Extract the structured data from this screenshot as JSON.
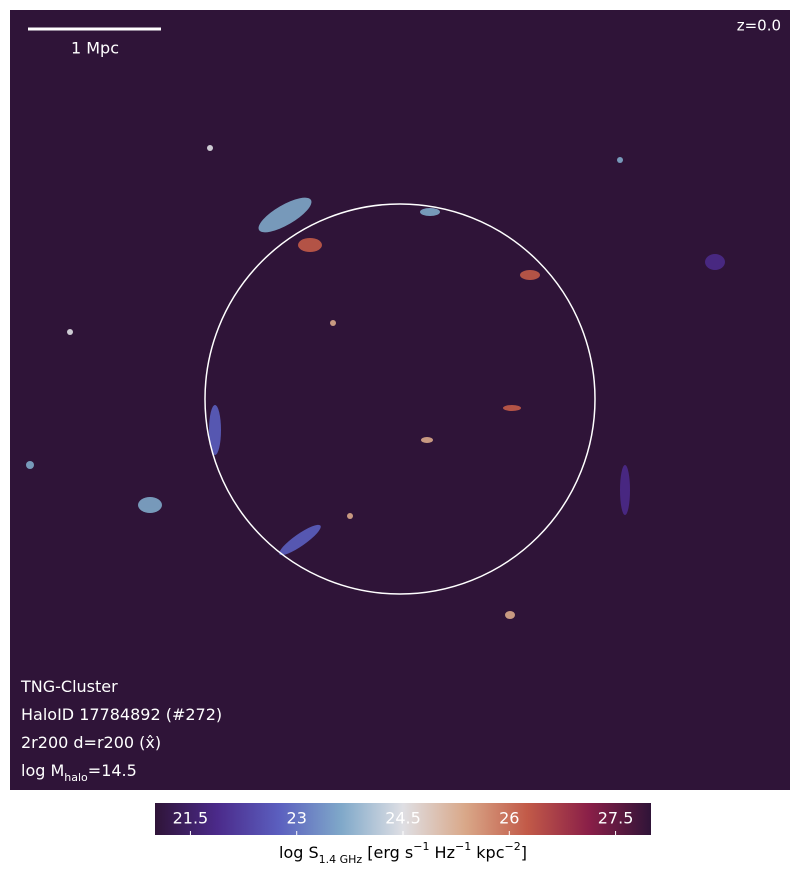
{
  "chart_data": {
    "type": "map",
    "annotations": {
      "scale_bar": "1 Mpc",
      "redshift": "z=0.0"
    },
    "info": [
      [
        {
          "text": "TNG-Cluster"
        }
      ],
      [
        {
          "text": "HaloID 17784892 (#272)"
        }
      ],
      [
        {
          "text": "2r200 d=r200 ("
        },
        {
          "text": "x̂"
        },
        {
          "text": ")"
        }
      ],
      [
        {
          "text": "log M"
        },
        {
          "text": "halo",
          "style": "sub"
        },
        {
          "text": "=14.5"
        }
      ]
    ],
    "colorbar": {
      "label": [
        {
          "text": "log S"
        },
        {
          "text": "1.4 GHz",
          "style": "sub"
        },
        {
          "text": " [erg s"
        },
        {
          "text": "−1",
          "style": "sup"
        },
        {
          "text": " Hz"
        },
        {
          "text": "−1",
          "style": "sup"
        },
        {
          "text": " kpc"
        },
        {
          "text": "−2",
          "style": "sup"
        },
        {
          "text": "]"
        }
      ],
      "clim": [
        21.0,
        28.0
      ],
      "ticks": [
        21.5,
        23.0,
        24.5,
        26.0,
        27.5
      ],
      "colormap": [
        "#2f1438",
        "#4b2a8a",
        "#5b5fbf",
        "#7fa8c9",
        "#dfdfe4",
        "#d9a889",
        "#c25a48",
        "#8a1f48",
        "#2f1438"
      ]
    }
  }
}
